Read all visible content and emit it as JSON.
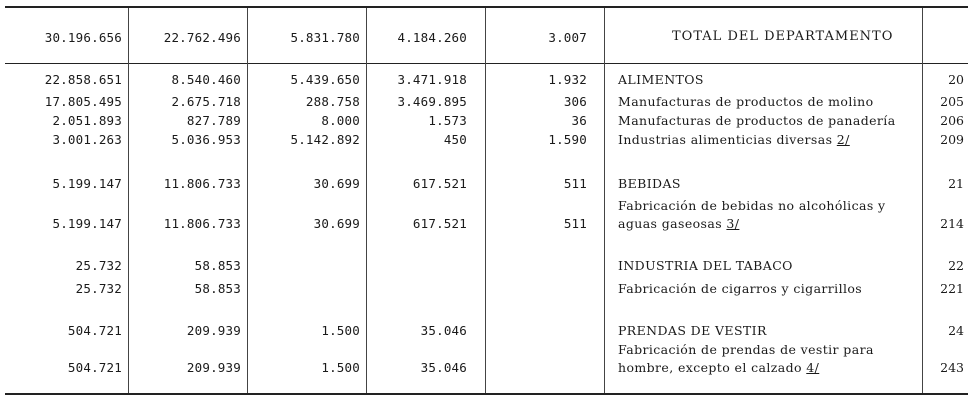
{
  "total_row": {
    "values": [
      "30.196.656",
      "22.762.496",
      "5.831.780",
      "4.184.260",
      "3.007"
    ],
    "label": "TOTAL DEL DEPARTAMENTO"
  },
  "rows": [
    {
      "values": [
        "22.858.651",
        "8.540.460",
        "5.439.650",
        "3.471.918",
        "1.932"
      ],
      "label": "ALIMENTOS",
      "note": "",
      "code": "20"
    },
    {
      "values": [
        "17.805.495",
        "2.675.718",
        "288.758",
        "3.469.895",
        "306"
      ],
      "label": "Manufacturas de productos de molino",
      "note": "",
      "code": "205"
    },
    {
      "values": [
        "2.051.893",
        "827.789",
        "8.000",
        "1.573",
        "36"
      ],
      "label": "Manufacturas de productos de panadería",
      "note": "",
      "code": "206"
    },
    {
      "values": [
        "3.001.263",
        "5.036.953",
        "5.142.892",
        "450",
        "1.590"
      ],
      "label": "Industrias alimenticias diversas",
      "note": "2/",
      "code": "209"
    },
    {
      "values": [
        "5.199.147",
        "11.806.733",
        "30.699",
        "617.521",
        "511"
      ],
      "label": "BEBIDAS",
      "note": "",
      "code": "21"
    },
    {
      "values": [
        "5.199.147",
        "11.806.733",
        "30.699",
        "617.521",
        "511"
      ],
      "label_line1": "Fabricación de bebidas no alcohólicas y",
      "label": "aguas gaseosas",
      "note": "3/",
      "code": "214"
    },
    {
      "values": [
        "25.732",
        "58.853",
        "",
        "",
        ""
      ],
      "label": "INDUSTRIA DEL TABACO",
      "note": "",
      "code": "22"
    },
    {
      "values": [
        "25.732",
        "58.853",
        "",
        "",
        ""
      ],
      "label": "Fabricación de cigarros y cigarrillos",
      "note": "",
      "code": "221"
    },
    {
      "values": [
        "504.721",
        "209.939",
        "1.500",
        "35.046",
        ""
      ],
      "label": "PRENDAS DE VESTIR",
      "note": "",
      "code": "24"
    },
    {
      "values": [
        "504.721",
        "209.939",
        "1.500",
        "35.046",
        ""
      ],
      "label_line1": "Fabricación de prendas de vestir para",
      "label": "hombre, excepto el calzado",
      "note": "4/",
      "code": "243"
    }
  ]
}
